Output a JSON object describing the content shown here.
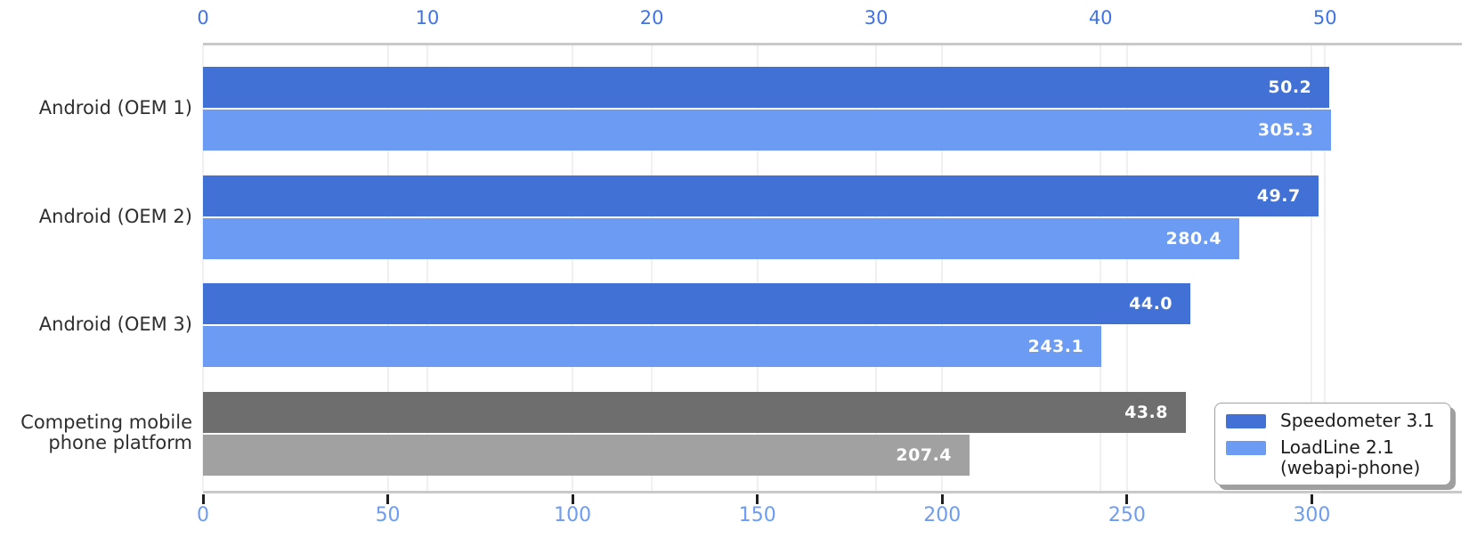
{
  "chart_data": {
    "type": "bar",
    "orientation": "horizontal",
    "dual_axis": true,
    "title": "",
    "categories": [
      "Android (OEM 1)",
      "Android (OEM 2)",
      "Android (OEM 3)",
      "Competing mobile\nphone platform"
    ],
    "series": [
      {
        "name": "Speedometer 3.1",
        "axis": "top",
        "values": [
          50.2,
          49.7,
          44.0,
          43.8
        ],
        "bar_colors": [
          "#4271d6",
          "#4271d6",
          "#4271d6",
          "#6e6e6e"
        ],
        "legend_color": "#4271d6"
      },
      {
        "name": "LoadLine 2.1\n(webapi-phone)",
        "axis": "bottom",
        "values": [
          305.3,
          280.4,
          243.1,
          207.4
        ],
        "bar_colors": [
          "#6b9bf2",
          "#6b9bf2",
          "#6b9bf2",
          "#a1a1a1"
        ],
        "legend_color": "#6b9bf2"
      }
    ],
    "axes": {
      "top": {
        "ticks": [
          0,
          10,
          20,
          30,
          40,
          50
        ],
        "range": [
          0,
          56.1
        ],
        "label_color": "#4273e3",
        "has_tick_marks": false
      },
      "bottom": {
        "ticks": [
          0,
          50,
          100,
          150,
          200,
          250,
          300
        ],
        "range": [
          0,
          340.6
        ],
        "label_color": "#6d9cf2",
        "has_tick_marks": true
      }
    },
    "value_label_color": "#ffffff",
    "grid": true,
    "legend_position": "bottom-right"
  }
}
